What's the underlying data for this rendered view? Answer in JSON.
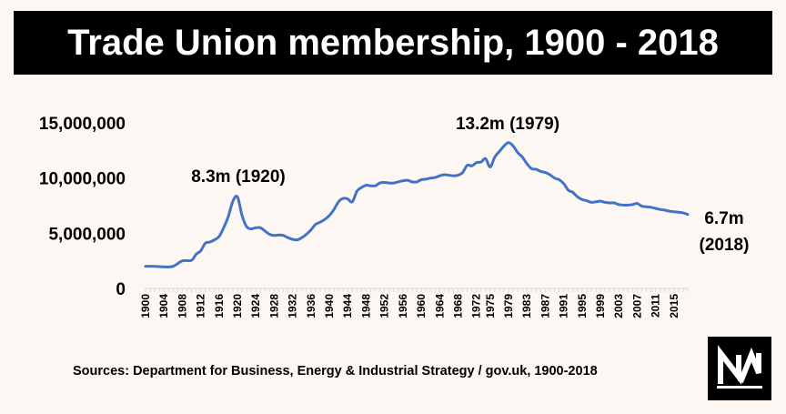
{
  "title": "Trade Union membership, 1900 - 2018",
  "source": "Sources: Department for Business, Energy & Industrial Strategy / gov.uk, 1900-2018",
  "logo": {
    "icon": "nm-logo-icon",
    "text": "NM"
  },
  "colors": {
    "line": "#4472c4",
    "title_bg": "#000000",
    "background": "#fcf7f3"
  },
  "chart_data": {
    "type": "line",
    "title": "Trade Union membership, 1900 - 2018",
    "xlabel": "",
    "ylabel": "",
    "ylim": [
      0,
      15000000
    ],
    "xlim": [
      1900,
      2018
    ],
    "grid": false,
    "y_ticks": [
      {
        "value": 0,
        "label": "0"
      },
      {
        "value": 5000000,
        "label": "5,000,000"
      },
      {
        "value": 10000000,
        "label": "10,000,000"
      },
      {
        "value": 15000000,
        "label": "15,000,000"
      }
    ],
    "x_tick_labels": [
      "1900",
      "1904",
      "1908",
      "1912",
      "1916",
      "1920",
      "1924",
      "1928",
      "1932",
      "1936",
      "1940",
      "1944",
      "1948",
      "1952",
      "1956",
      "1960",
      "1964",
      "1968",
      "1972",
      "1975",
      "1979",
      "1983",
      "1987",
      "1991",
      "1995",
      "1999",
      "2003",
      "2007",
      "2011",
      "2015"
    ],
    "series": [
      {
        "x": [
          1900,
          1902,
          1904,
          1906,
          1908,
          1910,
          1911,
          1912,
          1913,
          1914,
          1915,
          1916,
          1917,
          1918,
          1919,
          1920,
          1921,
          1922,
          1923,
          1924,
          1925,
          1926,
          1927,
          1928,
          1929,
          1930,
          1931,
          1932,
          1933,
          1934,
          1935,
          1936,
          1937,
          1938,
          1939,
          1940,
          1941,
          1942,
          1943,
          1944,
          1945,
          1946,
          1947,
          1948,
          1949,
          1950,
          1951,
          1952,
          1953,
          1954,
          1955,
          1956,
          1957,
          1958,
          1959,
          1960,
          1961,
          1962,
          1963,
          1964,
          1965,
          1966,
          1967,
          1968,
          1969,
          1970,
          1971,
          1972,
          1973,
          1974,
          1975,
          1976,
          1977,
          1978,
          1979,
          1980,
          1981,
          1982,
          1983,
          1984,
          1985,
          1986,
          1987,
          1988,
          1989,
          1990,
          1991,
          1992,
          1993,
          1994,
          1995,
          1996,
          1997,
          1998,
          1999,
          2000,
          2001,
          2002,
          2003,
          2004,
          2005,
          2006,
          2007,
          2008,
          2009,
          2010,
          2011,
          2012,
          2013,
          2014,
          2015,
          2016,
          2017,
          2018
        ],
        "values": [
          2000000,
          2000000,
          1950000,
          2000000,
          2500000,
          2550000,
          3100000,
          3400000,
          4100000,
          4200000,
          4400000,
          4700000,
          5500000,
          6500000,
          7900000,
          8300000,
          6600000,
          5600000,
          5400000,
          5500000,
          5500000,
          5200000,
          4900000,
          4800000,
          4850000,
          4800000,
          4600000,
          4450000,
          4400000,
          4600000,
          4900000,
          5300000,
          5800000,
          6000000,
          6250000,
          6600000,
          7150000,
          7850000,
          8150000,
          8100000,
          7850000,
          8800000,
          9150000,
          9350000,
          9300000,
          9300000,
          9550000,
          9600000,
          9550000,
          9550000,
          9650000,
          9750000,
          9800000,
          9650000,
          9650000,
          9850000,
          9900000,
          10000000,
          10050000,
          10200000,
          10300000,
          10250000,
          10200000,
          10250000,
          10500000,
          11150000,
          11100000,
          11400000,
          11450000,
          11750000,
          11000000,
          11900000,
          12400000,
          12900000,
          13200000,
          12900000,
          12300000,
          11900000,
          11300000,
          10850000,
          10800000,
          10600000,
          10500000,
          10300000,
          10000000,
          9850000,
          9500000,
          8900000,
          8700000,
          8300000,
          8050000,
          7950000,
          7800000,
          7850000,
          7900000,
          7800000,
          7750000,
          7750000,
          7600000,
          7550000,
          7550000,
          7600000,
          7700000,
          7450000,
          7400000,
          7350000,
          7250000,
          7150000,
          7100000,
          7000000,
          6950000,
          6900000,
          6850000,
          6700000
        ]
      }
    ],
    "annotations": [
      {
        "text": "8.3m (1920)"
      },
      {
        "text": "13.2m (1979)"
      },
      {
        "text": "6.7m"
      },
      {
        "text": "(2018)"
      }
    ]
  }
}
